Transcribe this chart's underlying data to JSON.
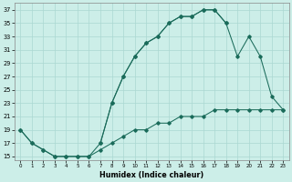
{
  "xlabel": "Humidex (Indice chaleur)",
  "bg_color": "#cceee8",
  "line_color": "#1a6b5a",
  "grid_color": "#aad8d2",
  "xlim": [
    -0.5,
    23.5
  ],
  "ylim": [
    14.5,
    38.0
  ],
  "yticks": [
    15,
    17,
    19,
    21,
    23,
    25,
    27,
    29,
    31,
    33,
    35,
    37
  ],
  "xticks": [
    0,
    1,
    2,
    3,
    4,
    5,
    6,
    7,
    8,
    9,
    10,
    11,
    12,
    13,
    14,
    15,
    16,
    17,
    18,
    19,
    20,
    21,
    22,
    23
  ],
  "line1_x": [
    0,
    1,
    2,
    3,
    4,
    5,
    6,
    7,
    8,
    9,
    10,
    11,
    12,
    13,
    14,
    15,
    16,
    17,
    18
  ],
  "line1_y": [
    19,
    17,
    16,
    15,
    15,
    15,
    15,
    17,
    23,
    27,
    30,
    32,
    33,
    35,
    36,
    36,
    37,
    37,
    35
  ],
  "line2_x": [
    0,
    1,
    2,
    3,
    4,
    5,
    6,
    7,
    8,
    9,
    10,
    11,
    12,
    13,
    14,
    15,
    16,
    17,
    18,
    19,
    20,
    21,
    22,
    23
  ],
  "line2_y": [
    19,
    17,
    16,
    15,
    15,
    15,
    15,
    16,
    17,
    18,
    19,
    19,
    20,
    20,
    21,
    21,
    21,
    22,
    22,
    22,
    22,
    22,
    22,
    22
  ],
  "line3_x": [
    7,
    8,
    9,
    10,
    11,
    12,
    13,
    14,
    15,
    16,
    17,
    18,
    19,
    20,
    21,
    22,
    23
  ],
  "line3_y": [
    17,
    23,
    27,
    30,
    32,
    33,
    35,
    36,
    36,
    37,
    37,
    35,
    30,
    33,
    30,
    24,
    22
  ]
}
